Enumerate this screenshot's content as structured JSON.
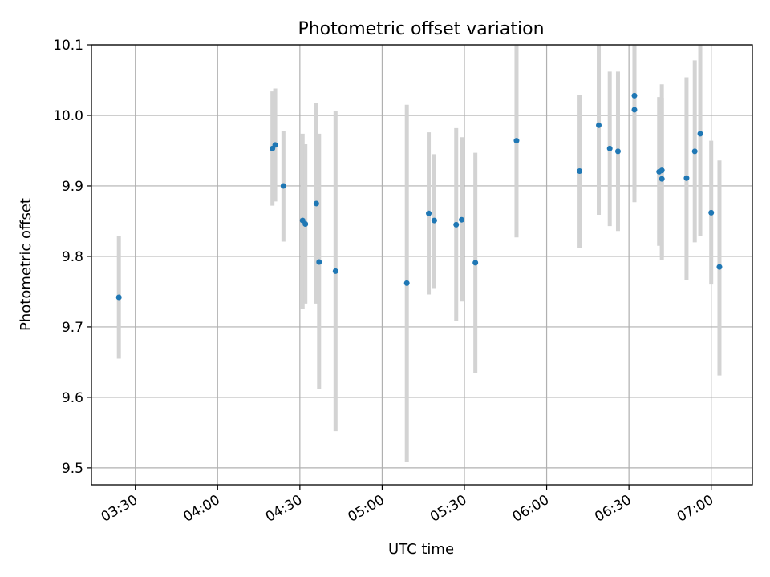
{
  "chart_data": {
    "type": "scatter",
    "title": "Photometric offset variation",
    "xlabel": "UTC time",
    "ylabel": "Photometric offset",
    "xlim": [
      "03:14",
      "07:15"
    ],
    "ylim": [
      9.476,
      10.1
    ],
    "x_ticks": [
      "03:30",
      "04:00",
      "04:30",
      "05:00",
      "05:30",
      "06:00",
      "06:30",
      "07:00"
    ],
    "y_ticks": [
      9.5,
      9.6,
      9.7,
      9.8,
      9.9,
      10.0,
      10.1
    ],
    "y_tick_labels": [
      "9.5",
      "9.6",
      "9.7",
      "9.8",
      "9.9",
      "10.0",
      "10.1"
    ],
    "grid": true,
    "colors": {
      "point": "#1f77b4",
      "errorbar": "#d3d3d3"
    },
    "points": [
      {
        "x": "03:24",
        "y": 9.742,
        "ymin": 9.655,
        "ymax": 9.829
      },
      {
        "x": "04:20",
        "y": 9.953,
        "ymin": 9.872,
        "ymax": 10.034
      },
      {
        "x": "04:21",
        "y": 9.958,
        "ymin": 9.878,
        "ymax": 10.038
      },
      {
        "x": "04:24",
        "y": 9.9,
        "ymin": 9.821,
        "ymax": 9.978
      },
      {
        "x": "04:31",
        "y": 9.851,
        "ymin": 9.726,
        "ymax": 9.974
      },
      {
        "x": "04:32",
        "y": 9.846,
        "ymin": 9.733,
        "ymax": 9.959
      },
      {
        "x": "04:36",
        "y": 9.875,
        "ymin": 9.733,
        "ymax": 10.017
      },
      {
        "x": "04:37",
        "y": 9.792,
        "ymin": 9.612,
        "ymax": 9.974
      },
      {
        "x": "04:43",
        "y": 9.779,
        "ymin": 9.552,
        "ymax": 10.006
      },
      {
        "x": "05:09",
        "y": 9.762,
        "ymin": 9.509,
        "ymax": 10.015
      },
      {
        "x": "05:17",
        "y": 9.861,
        "ymin": 9.746,
        "ymax": 9.976
      },
      {
        "x": "05:19",
        "y": 9.851,
        "ymin": 9.755,
        "ymax": 9.945
      },
      {
        "x": "05:27",
        "y": 9.845,
        "ymin": 9.709,
        "ymax": 9.982
      },
      {
        "x": "05:29",
        "y": 9.852,
        "ymin": 9.736,
        "ymax": 9.969
      },
      {
        "x": "05:34",
        "y": 9.791,
        "ymin": 9.635,
        "ymax": 9.947
      },
      {
        "x": "05:49",
        "y": 9.964,
        "ymin": 9.827,
        "ymax": 10.101
      },
      {
        "x": "06:12",
        "y": 9.921,
        "ymin": 9.812,
        "ymax": 10.029
      },
      {
        "x": "06:19",
        "y": 9.986,
        "ymin": 9.859,
        "ymax": 10.113
      },
      {
        "x": "06:23",
        "y": 9.953,
        "ymin": 9.843,
        "ymax": 10.062
      },
      {
        "x": "06:26",
        "y": 9.949,
        "ymin": 9.836,
        "ymax": 10.062
      },
      {
        "x": "06:32",
        "y": 10.028,
        "ymin": 9.891,
        "ymax": 10.165
      },
      {
        "x": "06:32",
        "y": 10.008,
        "ymin": 9.877,
        "ymax": 10.139
      },
      {
        "x": "06:41",
        "y": 9.92,
        "ymin": 9.815,
        "ymax": 10.026
      },
      {
        "x": "06:42",
        "y": 9.91,
        "ymin": 9.795,
        "ymax": 10.025
      },
      {
        "x": "06:42",
        "y": 9.922,
        "ymin": 9.8,
        "ymax": 10.044
      },
      {
        "x": "06:51",
        "y": 9.911,
        "ymin": 9.766,
        "ymax": 10.054
      },
      {
        "x": "06:54",
        "y": 9.949,
        "ymin": 9.82,
        "ymax": 10.078
      },
      {
        "x": "06:56",
        "y": 9.974,
        "ymin": 9.829,
        "ymax": 10.12
      },
      {
        "x": "07:00",
        "y": 9.862,
        "ymin": 9.76,
        "ymax": 9.964
      },
      {
        "x": "07:03",
        "y": 9.785,
        "ymin": 9.631,
        "ymax": 9.936
      }
    ]
  }
}
